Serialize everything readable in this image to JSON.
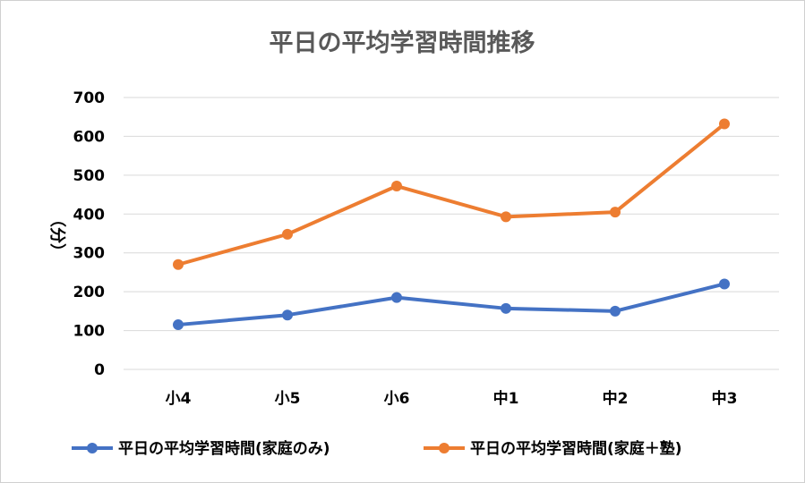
{
  "chart_data": {
    "type": "line",
    "title": "平日の平均学習時間推移",
    "xlabel": "",
    "ylabel": "（分）",
    "categories": [
      "小4",
      "小5",
      "小6",
      "中1",
      "中2",
      "中3"
    ],
    "ylim": [
      0,
      700
    ],
    "yticks": [
      "0",
      "100",
      "200",
      "300",
      "400",
      "500",
      "600",
      "700"
    ],
    "grid": true,
    "legend_position": "bottom",
    "series": [
      {
        "name": "平日の平均学習時間(家庭のみ)",
        "color": "#4472C4",
        "values": [
          115,
          140,
          185,
          157,
          150,
          220
        ]
      },
      {
        "name": "平日の平均学習時間(家庭＋塾)",
        "color": "#ED7D31",
        "values": [
          270,
          348,
          472,
          393,
          405,
          632
        ]
      }
    ]
  }
}
